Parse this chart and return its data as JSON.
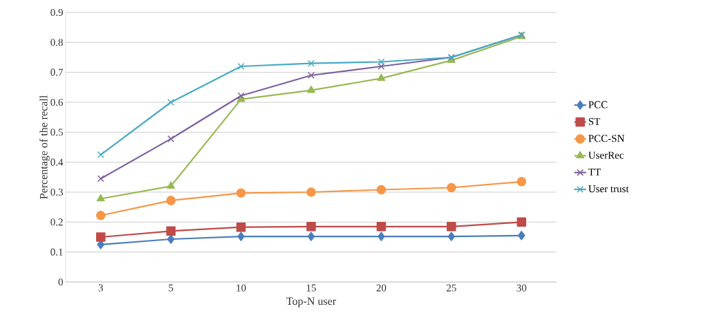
{
  "chart_data": {
    "type": "line",
    "xlabel": "Top-N user",
    "ylabel": "Percentage of the recall",
    "categories": [
      "3",
      "5",
      "10",
      "15",
      "20",
      "25",
      "30"
    ],
    "series": [
      {
        "name": "PCC",
        "color": "#4a7ebb",
        "marker": "diamond",
        "values": [
          0.125,
          0.143,
          0.152,
          0.152,
          0.152,
          0.152,
          0.155
        ]
      },
      {
        "name": "ST",
        "color": "#be4b48",
        "marker": "square",
        "values": [
          0.15,
          0.17,
          0.183,
          0.185,
          0.185,
          0.185,
          0.2
        ]
      },
      {
        "name": "PCC-SN",
        "color": "#f79646",
        "marker": "circle",
        "values": [
          0.222,
          0.272,
          0.297,
          0.3,
          0.308,
          0.315,
          0.335
        ]
      },
      {
        "name": "UserRec",
        "color": "#98b954",
        "marker": "triangle",
        "values": [
          0.278,
          0.32,
          0.61,
          0.64,
          0.68,
          0.74,
          0.82
        ]
      },
      {
        "name": "TT",
        "color": "#7d60a0",
        "marker": "cross",
        "values": [
          0.345,
          0.478,
          0.622,
          0.69,
          0.72,
          0.75,
          0.825
        ]
      },
      {
        "name": "User trust",
        "color": "#46aac5",
        "marker": "cross",
        "values": [
          0.425,
          0.6,
          0.72,
          0.73,
          0.735,
          0.75,
          0.825
        ]
      }
    ],
    "ylim": [
      0,
      0.9
    ],
    "yticks": [
      0,
      0.1,
      0.2,
      0.3,
      0.4,
      0.5,
      0.6,
      0.7,
      0.8,
      0.9
    ],
    "grid": "y",
    "legend": "right",
    "line_style": "solid"
  }
}
